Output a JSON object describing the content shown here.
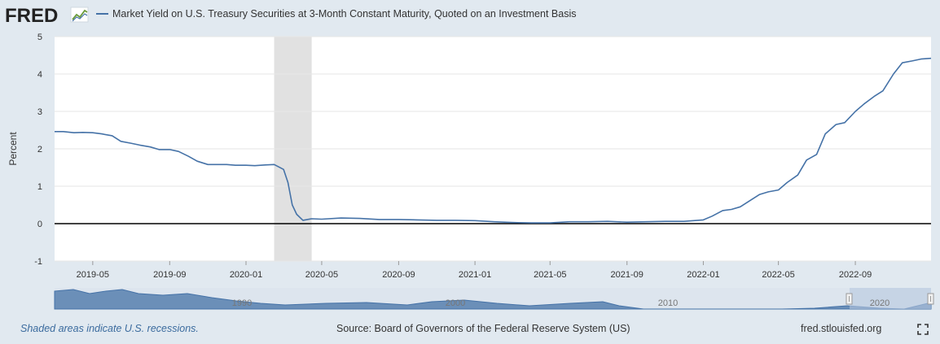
{
  "header": {
    "logo_text": "FRED",
    "series_title": "Market Yield on U.S. Treasury Securities at 3-Month Constant Maturity, Quoted on an Investment Basis"
  },
  "footer": {
    "recession_note": "Shaded areas indicate U.S. recessions.",
    "source": "Source: Board of Governors of the Federal Reserve System (US)",
    "url": "fred.stlouisfed.org"
  },
  "colors": {
    "series_line": "#4572a7",
    "recession_shade": "#e1e1e1",
    "background": "#e1e9f0",
    "zero_line": "#000000",
    "navigator_fill": "#6b8fb8",
    "navigator_window": "#b8c8e0"
  },
  "icons": [
    "fred-logo-chart-icon",
    "fullscreen-icon"
  ],
  "chart_data": {
    "type": "line",
    "ylabel": "Percent",
    "ylim": [
      -1,
      5
    ],
    "yticks": [
      "5",
      "4",
      "3",
      "2",
      "1",
      "0",
      "-1"
    ],
    "xlim": [
      "2019-03-01",
      "2022-12-31"
    ],
    "xticks": [
      "2019-05",
      "2019-09",
      "2020-01",
      "2020-05",
      "2020-09",
      "2021-01",
      "2021-05",
      "2021-09",
      "2022-01",
      "2022-05",
      "2022-09"
    ],
    "grid": true,
    "recessions": [
      {
        "start": "2020-02-15",
        "end": "2020-04-15"
      }
    ],
    "series": [
      {
        "name": "Market Yield on U.S. Treasury Securities at 3-Month Constant Maturity, Quoted on an Investment Basis",
        "x": [
          "2019-03-01",
          "2019-03-15",
          "2019-04-01",
          "2019-04-15",
          "2019-05-01",
          "2019-05-15",
          "2019-06-01",
          "2019-06-15",
          "2019-07-01",
          "2019-07-15",
          "2019-08-01",
          "2019-08-15",
          "2019-09-01",
          "2019-09-15",
          "2019-10-01",
          "2019-10-15",
          "2019-11-01",
          "2019-11-15",
          "2019-12-01",
          "2019-12-15",
          "2020-01-01",
          "2020-01-15",
          "2020-02-01",
          "2020-02-15",
          "2020-03-01",
          "2020-03-08",
          "2020-03-15",
          "2020-03-22",
          "2020-04-01",
          "2020-04-15",
          "2020-05-01",
          "2020-06-01",
          "2020-07-01",
          "2020-08-01",
          "2020-09-01",
          "2020-10-01",
          "2020-11-01",
          "2020-12-01",
          "2021-01-01",
          "2021-02-01",
          "2021-03-01",
          "2021-04-01",
          "2021-05-01",
          "2021-06-01",
          "2021-07-01",
          "2021-08-01",
          "2021-09-01",
          "2021-10-01",
          "2021-11-01",
          "2021-12-01",
          "2022-01-01",
          "2022-01-15",
          "2022-02-01",
          "2022-02-15",
          "2022-03-01",
          "2022-03-15",
          "2022-04-01",
          "2022-04-15",
          "2022-05-01",
          "2022-05-15",
          "2022-06-01",
          "2022-06-15",
          "2022-07-01",
          "2022-07-15",
          "2022-08-01",
          "2022-08-15",
          "2022-09-01",
          "2022-09-15",
          "2022-10-01",
          "2022-10-15",
          "2022-11-01",
          "2022-11-15",
          "2022-12-01",
          "2022-12-15",
          "2022-12-31"
        ],
        "y": [
          2.46,
          2.46,
          2.43,
          2.44,
          2.43,
          2.4,
          2.35,
          2.2,
          2.15,
          2.1,
          2.05,
          1.98,
          1.98,
          1.93,
          1.8,
          1.67,
          1.58,
          1.58,
          1.58,
          1.56,
          1.56,
          1.55,
          1.57,
          1.58,
          1.45,
          1.1,
          0.5,
          0.25,
          0.09,
          0.13,
          0.12,
          0.15,
          0.14,
          0.11,
          0.11,
          0.1,
          0.09,
          0.09,
          0.08,
          0.05,
          0.03,
          0.02,
          0.02,
          0.05,
          0.05,
          0.06,
          0.04,
          0.05,
          0.06,
          0.06,
          0.1,
          0.2,
          0.35,
          0.38,
          0.45,
          0.6,
          0.78,
          0.85,
          0.9,
          1.1,
          1.3,
          1.7,
          1.85,
          2.4,
          2.65,
          2.7,
          3.0,
          3.2,
          3.4,
          3.55,
          4.0,
          4.3,
          4.35,
          4.4,
          4.42
        ]
      }
    ]
  }
}
